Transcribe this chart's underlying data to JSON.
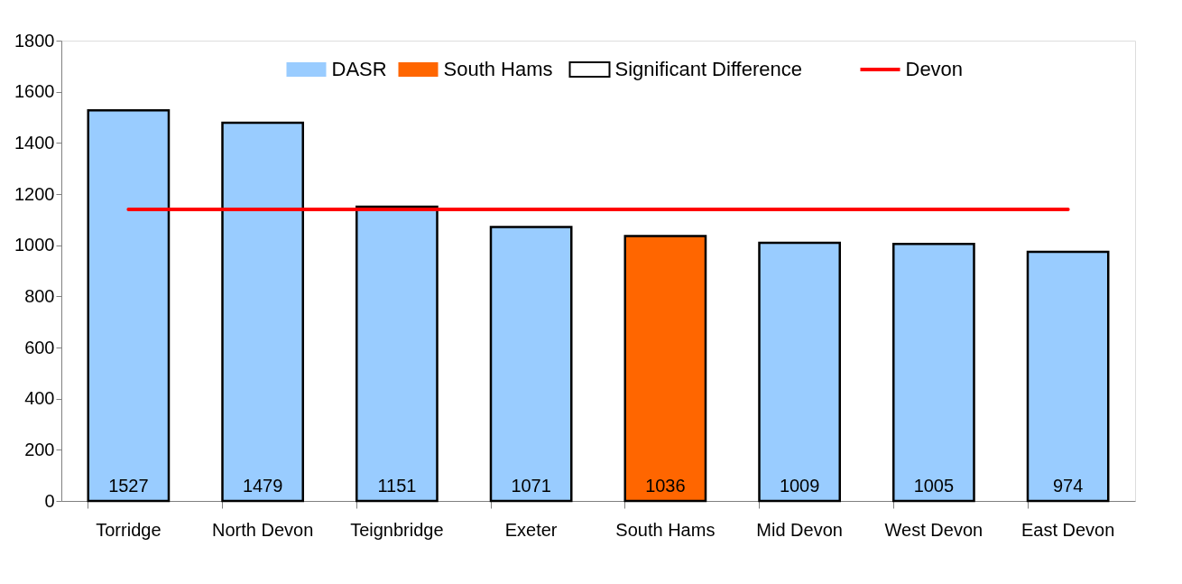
{
  "chart_data": {
    "type": "bar",
    "categories": [
      "Torridge",
      "North Devon",
      "Teignbridge",
      "Exeter",
      "South Hams",
      "Mid Devon",
      "West Devon",
      "East Devon"
    ],
    "series": [
      {
        "name": "DASR",
        "color": "#99ccff",
        "values": [
          1527,
          1479,
          1151,
          1071,
          null,
          1009,
          1005,
          974
        ],
        "value_labels": [
          "1527",
          "1479",
          "1151",
          "1071",
          null,
          "1009",
          "1005",
          "974"
        ]
      },
      {
        "name": "South Hams",
        "color": "#ff6600",
        "values": [
          null,
          null,
          null,
          null,
          1036,
          null,
          null,
          null
        ],
        "value_labels": [
          null,
          null,
          null,
          null,
          "1036",
          null,
          null,
          null
        ]
      },
      {
        "name": "Devon",
        "type": "line",
        "color": "#ff0000",
        "values": [
          1140,
          1140,
          1140,
          1140,
          1140,
          1140,
          1140,
          1140
        ]
      }
    ],
    "annotations": [
      "Significant Difference"
    ],
    "ylim": [
      0,
      1800
    ],
    "yticks": [
      0,
      200,
      400,
      600,
      800,
      1000,
      1200,
      1400,
      1600,
      1800
    ],
    "grid": false,
    "legend": "top"
  }
}
